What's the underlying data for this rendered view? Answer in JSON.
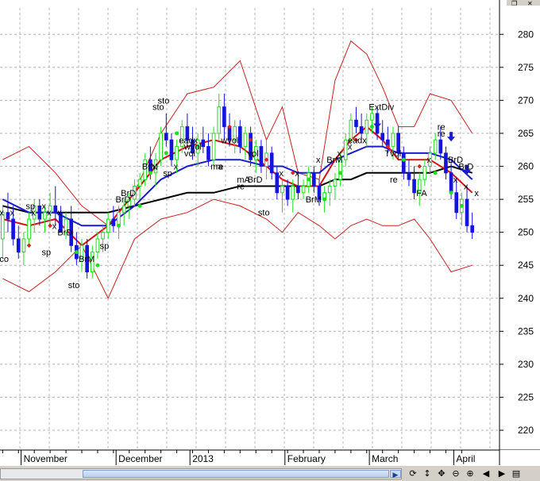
{
  "window": {
    "restore_glyph": "❐",
    "close_glyph": "✕"
  },
  "toolbar": {
    "icons": [
      {
        "name": "refresh-icon",
        "glyph": "⟳"
      },
      {
        "name": "move-vertical-icon",
        "glyph": "↕"
      },
      {
        "name": "move-all-icon",
        "glyph": "✥"
      },
      {
        "name": "zoom-out-icon",
        "glyph": "⊖"
      },
      {
        "name": "zoom-in-icon",
        "glyph": "⊕"
      },
      {
        "name": "scroll-left-icon",
        "glyph": "◀"
      },
      {
        "name": "scroll-right-icon",
        "glyph": "▶"
      },
      {
        "name": "panel-icon",
        "glyph": "▤"
      }
    ],
    "scroll_arrow": "▶"
  },
  "chart_data": {
    "type": "candlestick",
    "y_axis_position": "right",
    "ylim": [
      217,
      284
    ],
    "yticks": [
      220,
      225,
      230,
      235,
      240,
      245,
      250,
      255,
      260,
      265,
      270,
      275,
      280
    ],
    "grid": true,
    "x_labels": [
      "November",
      "December",
      "2013",
      "February",
      "March",
      "April"
    ],
    "colors": {
      "up_candle": "#22dd22",
      "down_candle": "#1414dc",
      "bollinger": "#c82020",
      "sma_short": "#d41414",
      "sma_mid": "#1a1ad0",
      "sma_long": "#000000",
      "signal_up": "#22dd22",
      "signal_down": "#dd2222",
      "arrow": "#1a1ad0"
    },
    "candles": [
      [
        249,
        254,
        246,
        253
      ],
      [
        253,
        256,
        250,
        252
      ],
      [
        252,
        254,
        248,
        249
      ],
      [
        249,
        251,
        246,
        247
      ],
      [
        247,
        250,
        245,
        249
      ],
      [
        249,
        253,
        248,
        252
      ],
      [
        252,
        255,
        250,
        254
      ],
      [
        254,
        255,
        251,
        252
      ],
      [
        252,
        254,
        250,
        253
      ],
      [
        253,
        256,
        251,
        254
      ],
      [
        254,
        257,
        251,
        253
      ],
      [
        253,
        254,
        250,
        250
      ],
      [
        250,
        253,
        249,
        252
      ],
      [
        252,
        254,
        247,
        248
      ],
      [
        248,
        250,
        245,
        246
      ],
      [
        246,
        249,
        244,
        248
      ],
      [
        248,
        249,
        243,
        244
      ],
      [
        244,
        248,
        243,
        247
      ],
      [
        247,
        250,
        246,
        249
      ],
      [
        249,
        251,
        247,
        250
      ],
      [
        250,
        253,
        249,
        252
      ],
      [
        252,
        254,
        250,
        251
      ],
      [
        251,
        254,
        249,
        253
      ],
      [
        253,
        255,
        251,
        254
      ],
      [
        254,
        256,
        252,
        255
      ],
      [
        255,
        258,
        254,
        257
      ],
      [
        257,
        259,
        255,
        258
      ],
      [
        258,
        262,
        257,
        261
      ],
      [
        261,
        263,
        258,
        259
      ],
      [
        259,
        262,
        257,
        261
      ],
      [
        261,
        266,
        260,
        265
      ],
      [
        265,
        268,
        263,
        264
      ],
      [
        264,
        265,
        260,
        261
      ],
      [
        261,
        264,
        259,
        263
      ],
      [
        263,
        267,
        262,
        266
      ],
      [
        266,
        268,
        263,
        264
      ],
      [
        264,
        266,
        261,
        262
      ],
      [
        262,
        265,
        260,
        264
      ],
      [
        264,
        266,
        262,
        263
      ],
      [
        263,
        265,
        260,
        261
      ],
      [
        261,
        266,
        260,
        265
      ],
      [
        265,
        271,
        264,
        269
      ],
      [
        269,
        271,
        264,
        266
      ],
      [
        266,
        268,
        263,
        264
      ],
      [
        264,
        267,
        262,
        266
      ],
      [
        266,
        267,
        262,
        263
      ],
      [
        263,
        266,
        261,
        265
      ],
      [
        265,
        266,
        260,
        261
      ],
      [
        261,
        264,
        259,
        263
      ],
      [
        263,
        264,
        259,
        260
      ],
      [
        260,
        264,
        258,
        262
      ],
      [
        262,
        263,
        258,
        259
      ],
      [
        259,
        260,
        255,
        256
      ],
      [
        256,
        258,
        253,
        257
      ],
      [
        257,
        258,
        254,
        255
      ],
      [
        255,
        258,
        253,
        257
      ],
      [
        257,
        259,
        255,
        256
      ],
      [
        256,
        258,
        255,
        257
      ],
      [
        257,
        260,
        256,
        259
      ],
      [
        259,
        260,
        256,
        257
      ],
      [
        257,
        258,
        254,
        255
      ],
      [
        255,
        257,
        253,
        256
      ],
      [
        256,
        258,
        254,
        257
      ],
      [
        257,
        259,
        255,
        258
      ],
      [
        258,
        262,
        257,
        261
      ],
      [
        261,
        265,
        260,
        264
      ],
      [
        264,
        268,
        263,
        267
      ],
      [
        267,
        269,
        265,
        266
      ],
      [
        266,
        268,
        264,
        265
      ],
      [
        265,
        268,
        263,
        267
      ],
      [
        267,
        269,
        265,
        268
      ],
      [
        268,
        269,
        264,
        265
      ],
      [
        265,
        267,
        263,
        264
      ],
      [
        264,
        266,
        262,
        263
      ],
      [
        263,
        266,
        261,
        265
      ],
      [
        265,
        266,
        261,
        262
      ],
      [
        262,
        263,
        258,
        259
      ],
      [
        259,
        261,
        257,
        258
      ],
      [
        258,
        260,
        255,
        256
      ],
      [
        256,
        259,
        254,
        258
      ],
      [
        258,
        261,
        257,
        260
      ],
      [
        260,
        263,
        259,
        262
      ],
      [
        262,
        265,
        261,
        264
      ],
      [
        264,
        266,
        261,
        262
      ],
      [
        262,
        263,
        258,
        259
      ],
      [
        259,
        261,
        255,
        256
      ],
      [
        256,
        258,
        252,
        253
      ],
      [
        253,
        256,
        251,
        255
      ],
      [
        255,
        257,
        250,
        251
      ],
      [
        251,
        253,
        249,
        250
      ]
    ],
    "bollinger_upper": [
      [
        0,
        261
      ],
      [
        5,
        263
      ],
      [
        10,
        259
      ],
      [
        15,
        254
      ],
      [
        20,
        251
      ],
      [
        25,
        256
      ],
      [
        30,
        265
      ],
      [
        35,
        271
      ],
      [
        40,
        272
      ],
      [
        45,
        276
      ],
      [
        50,
        264
      ],
      [
        53,
        269
      ],
      [
        56,
        259
      ],
      [
        60,
        258
      ],
      [
        63,
        273
      ],
      [
        66,
        279
      ],
      [
        69,
        277
      ],
      [
        72,
        272
      ],
      [
        75,
        266
      ],
      [
        78,
        266
      ],
      [
        81,
        271
      ],
      [
        85,
        270
      ],
      [
        89,
        265
      ]
    ],
    "bollinger_lower": [
      [
        0,
        243
      ],
      [
        5,
        241
      ],
      [
        10,
        244
      ],
      [
        15,
        248
      ],
      [
        20,
        240
      ],
      [
        25,
        249
      ],
      [
        30,
        252
      ],
      [
        35,
        253
      ],
      [
        40,
        255
      ],
      [
        45,
        254
      ],
      [
        50,
        252
      ],
      [
        53,
        250
      ],
      [
        56,
        253
      ],
      [
        60,
        251
      ],
      [
        63,
        249
      ],
      [
        66,
        251
      ],
      [
        69,
        252
      ],
      [
        72,
        251
      ],
      [
        75,
        251
      ],
      [
        78,
        252
      ],
      [
        81,
        249
      ],
      [
        85,
        244
      ],
      [
        89,
        245
      ]
    ],
    "sma_short": [
      [
        0,
        252
      ],
      [
        5,
        251
      ],
      [
        10,
        252
      ],
      [
        15,
        248
      ],
      [
        20,
        251
      ],
      [
        25,
        256
      ],
      [
        30,
        261
      ],
      [
        35,
        263
      ],
      [
        40,
        264
      ],
      [
        45,
        263
      ],
      [
        50,
        260
      ],
      [
        53,
        258
      ],
      [
        56,
        257
      ],
      [
        60,
        257
      ],
      [
        63,
        261
      ],
      [
        66,
        264
      ],
      [
        69,
        266
      ],
      [
        72,
        264
      ],
      [
        75,
        261
      ],
      [
        78,
        261
      ],
      [
        81,
        261
      ],
      [
        85,
        259
      ],
      [
        89,
        256
      ]
    ],
    "sma_mid": [
      [
        0,
        255
      ],
      [
        5,
        253
      ],
      [
        10,
        253
      ],
      [
        15,
        251
      ],
      [
        20,
        251
      ],
      [
        25,
        254
      ],
      [
        30,
        258
      ],
      [
        35,
        260
      ],
      [
        40,
        261
      ],
      [
        45,
        261
      ],
      [
        50,
        260
      ],
      [
        53,
        260
      ],
      [
        56,
        259
      ],
      [
        60,
        259
      ],
      [
        63,
        261
      ],
      [
        66,
        262
      ],
      [
        69,
        263
      ],
      [
        72,
        263
      ],
      [
        75,
        262
      ],
      [
        78,
        262
      ],
      [
        81,
        262
      ],
      [
        85,
        261
      ],
      [
        89,
        258
      ]
    ],
    "sma_long": [
      [
        0,
        254
      ],
      [
        5,
        253
      ],
      [
        10,
        253
      ],
      [
        15,
        253
      ],
      [
        20,
        253
      ],
      [
        25,
        254
      ],
      [
        30,
        255
      ],
      [
        35,
        256
      ],
      [
        40,
        256
      ],
      [
        45,
        257
      ],
      [
        50,
        257
      ],
      [
        53,
        257
      ],
      [
        56,
        257
      ],
      [
        60,
        257
      ],
      [
        63,
        258
      ],
      [
        66,
        258
      ],
      [
        69,
        259
      ],
      [
        72,
        259
      ],
      [
        75,
        259
      ],
      [
        78,
        259
      ],
      [
        81,
        259
      ],
      [
        85,
        260
      ],
      [
        89,
        259
      ]
    ],
    "signals": [
      {
        "index": 5,
        "value": 248,
        "dir": "down"
      },
      {
        "index": 9,
        "value": 251,
        "dir": "down"
      },
      {
        "index": 14,
        "value": 247,
        "dir": "up"
      },
      {
        "index": 18,
        "value": 245,
        "dir": "up"
      },
      {
        "index": 22,
        "value": 251,
        "dir": "up"
      },
      {
        "index": 26,
        "value": 254,
        "dir": "up"
      },
      {
        "index": 28,
        "value": 259,
        "dir": "up"
      },
      {
        "index": 31,
        "value": 262,
        "dir": "up"
      },
      {
        "index": 33,
        "value": 265,
        "dir": "up"
      },
      {
        "index": 37,
        "value": 263,
        "dir": "up"
      },
      {
        "index": 43,
        "value": 266,
        "dir": "down"
      },
      {
        "index": 47,
        "value": 264,
        "dir": "down"
      },
      {
        "index": 50,
        "value": 261,
        "dir": "down"
      },
      {
        "index": 55,
        "value": 259,
        "dir": "down"
      },
      {
        "index": 58,
        "value": 258,
        "dir": "up"
      },
      {
        "index": 61,
        "value": 255,
        "dir": "up"
      },
      {
        "index": 64,
        "value": 259,
        "dir": "up"
      },
      {
        "index": 67,
        "value": 264,
        "dir": "down"
      },
      {
        "index": 70,
        "value": 266,
        "dir": "up"
      },
      {
        "index": 73,
        "value": 263,
        "dir": "down"
      },
      {
        "index": 76,
        "value": 261,
        "dir": "up"
      },
      {
        "index": 79,
        "value": 260,
        "dir": "down"
      },
      {
        "index": 82,
        "value": 259,
        "dir": "up"
      },
      {
        "index": 85,
        "value": 256,
        "dir": "up"
      },
      {
        "index": 87,
        "value": 254,
        "dir": "up"
      }
    ],
    "arrows": [
      {
        "index": 71,
        "value": 266
      },
      {
        "index": 85,
        "value": 264
      },
      {
        "index": 88,
        "value": 259
      }
    ],
    "annotations": [
      {
        "index": 0,
        "value": 246,
        "text": "co"
      },
      {
        "index": 0,
        "value": 253,
        "text": "x"
      },
      {
        "index": 2,
        "value": 253,
        "text": "x"
      },
      {
        "index": 5,
        "value": 254,
        "text": "sp"
      },
      {
        "index": 6,
        "value": 253,
        "text": "x"
      },
      {
        "index": 8,
        "value": 254,
        "text": "x"
      },
      {
        "index": 9,
        "value": 253,
        "text": "x"
      },
      {
        "index": 11,
        "value": 253,
        "text": "x"
      },
      {
        "index": 8,
        "value": 247,
        "text": "sp"
      },
      {
        "index": 11,
        "value": 250,
        "text": "BrD"
      },
      {
        "index": 10,
        "value": 251,
        "text": "x"
      },
      {
        "index": 15,
        "value": 246,
        "text": "BrM"
      },
      {
        "index": 13,
        "value": 242,
        "text": "sto"
      },
      {
        "index": 19,
        "value": 248,
        "text": "sp"
      },
      {
        "index": 23,
        "value": 256,
        "text": "BrD"
      },
      {
        "index": 22,
        "value": 255,
        "text": "BrD"
      },
      {
        "index": 27,
        "value": 260,
        "text": "BrM"
      },
      {
        "index": 29,
        "value": 260,
        "text": "x"
      },
      {
        "index": 31,
        "value": 259,
        "text": "sp"
      },
      {
        "index": 33,
        "value": 260,
        "text": "x"
      },
      {
        "index": 29,
        "value": 269,
        "text": "sto"
      },
      {
        "index": 30,
        "value": 270,
        "text": "sto"
      },
      {
        "index": 34,
        "value": 264,
        "text": "eadx"
      },
      {
        "index": 35,
        "value": 263,
        "text": "wvol"
      },
      {
        "index": 35,
        "value": 262,
        "text": "vol"
      },
      {
        "index": 40,
        "value": 260,
        "text": "ma"
      },
      {
        "index": 41,
        "value": 260,
        "text": "re"
      },
      {
        "index": 42,
        "value": 264,
        "text": "wvol"
      },
      {
        "index": 47,
        "value": 262,
        "text": "vol"
      },
      {
        "index": 45,
        "value": 258,
        "text": "mA"
      },
      {
        "index": 47,
        "value": 258,
        "text": "BrD"
      },
      {
        "index": 45,
        "value": 257,
        "text": "re"
      },
      {
        "index": 49,
        "value": 253,
        "text": "sto"
      },
      {
        "index": 53,
        "value": 259,
        "text": "x"
      },
      {
        "index": 56,
        "value": 259,
        "text": "x"
      },
      {
        "index": 58,
        "value": 255,
        "text": "BrM"
      },
      {
        "index": 60,
        "value": 261,
        "text": "x"
      },
      {
        "index": 62,
        "value": 261,
        "text": "BrM"
      },
      {
        "index": 64,
        "value": 262,
        "text": "x"
      },
      {
        "index": 66,
        "value": 263,
        "text": "x"
      },
      {
        "index": 66,
        "value": 264,
        "text": "eadx"
      },
      {
        "index": 70,
        "value": 269,
        "text": "ExtDiv"
      },
      {
        "index": 73,
        "value": 262,
        "text": "Tvol"
      },
      {
        "index": 74,
        "value": 258,
        "text": "re"
      },
      {
        "index": 79,
        "value": 256,
        "text": "FA"
      },
      {
        "index": 81,
        "value": 261,
        "text": "x"
      },
      {
        "index": 83,
        "value": 266,
        "text": "re"
      },
      {
        "index": 83,
        "value": 265,
        "text": "re"
      },
      {
        "index": 85,
        "value": 261,
        "text": "BrD"
      },
      {
        "index": 87,
        "value": 260,
        "text": "BrD"
      },
      {
        "index": 86,
        "value": 258,
        "text": "x"
      },
      {
        "index": 88,
        "value": 257,
        "text": "x"
      },
      {
        "index": 90,
        "value": 256,
        "text": "x"
      }
    ]
  }
}
